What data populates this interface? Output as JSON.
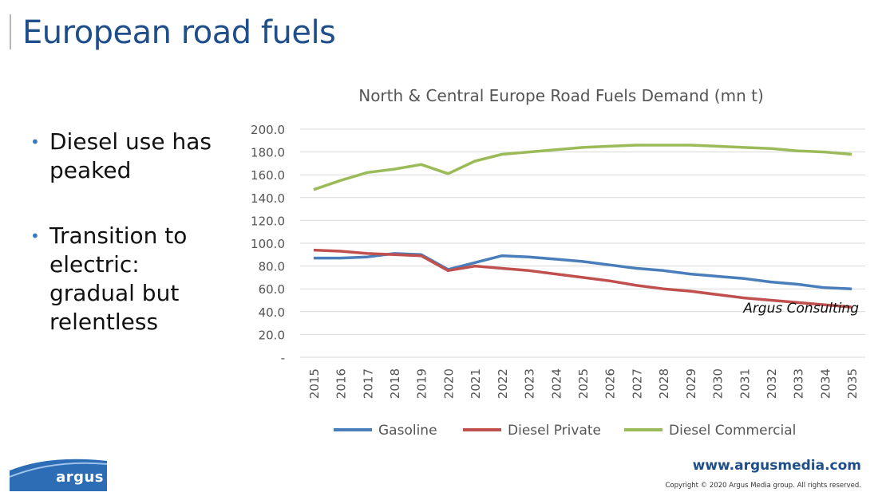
{
  "slide": {
    "title": "European road fuels",
    "bullets": [
      "Diesel use has peaked",
      "Transition to electric: gradual but relentless"
    ]
  },
  "footer": {
    "logo_text": "argus",
    "website": "www.argusmedia.com",
    "copyright": "Copyright © 2020 Argus Media group. All rights reserved."
  },
  "colors": {
    "title": "#1f4f8a",
    "gasoline": "#4a7ebb",
    "diesel_private": "#c0504d",
    "diesel_commercial": "#9bbb59",
    "logo": "#2d6db5"
  },
  "chart_data": {
    "type": "line",
    "title": "North & Central Europe Road Fuels Demand (mn t)",
    "xlabel": "",
    "ylabel": "",
    "annotation": "Argus Consulting",
    "x": [
      "2015",
      "2016",
      "2017",
      "2018",
      "2019",
      "2020",
      "2021",
      "2022",
      "2023",
      "2024",
      "2025",
      "2026",
      "2027",
      "2028",
      "2029",
      "2030",
      "2031",
      "2032",
      "2033",
      "2034",
      "2035"
    ],
    "ylim": [
      0,
      200
    ],
    "yticks": [
      0,
      20,
      40,
      60,
      80,
      100,
      120,
      140,
      160,
      180,
      200
    ],
    "ytick_labels": [
      "-",
      "20.0",
      "40.0",
      "60.0",
      "80.0",
      "100.0",
      "120.0",
      "140.0",
      "160.0",
      "180.0",
      "200.0"
    ],
    "grid": true,
    "legend": "bottom",
    "series": [
      {
        "name": "Gasoline",
        "color": "#4a7ebb",
        "values": [
          87,
          87,
          88,
          91,
          90,
          77,
          83,
          89,
          88,
          86,
          84,
          81,
          78,
          76,
          73,
          71,
          69,
          66,
          64,
          61,
          60
        ]
      },
      {
        "name": "Diesel Private",
        "color": "#c0504d",
        "values": [
          94,
          93,
          91,
          90,
          89,
          76,
          80,
          78,
          76,
          73,
          70,
          67,
          63,
          60,
          58,
          55,
          52,
          50,
          48,
          46,
          44
        ]
      },
      {
        "name": "Diesel Commercial",
        "color": "#9bbb59",
        "values": [
          147,
          155,
          162,
          165,
          169,
          161,
          172,
          178,
          180,
          182,
          184,
          185,
          186,
          186,
          186,
          185,
          184,
          183,
          181,
          180,
          178
        ]
      }
    ]
  }
}
